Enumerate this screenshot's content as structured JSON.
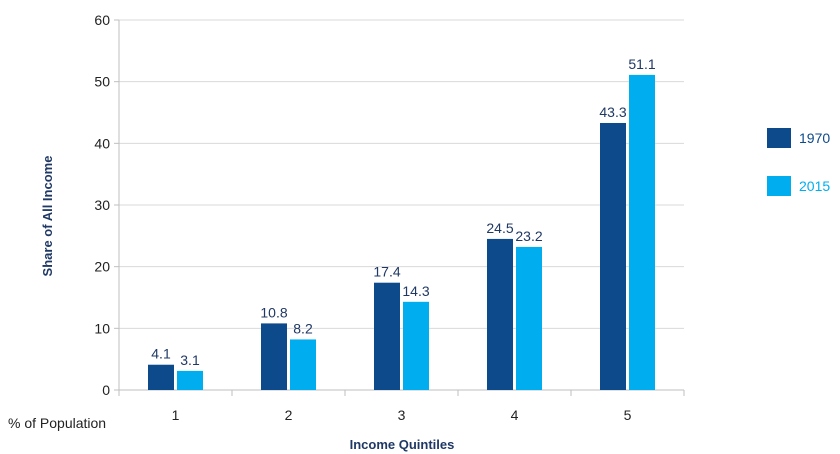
{
  "chart_data": {
    "type": "bar",
    "title": "",
    "xlabel": "Income Quintiles",
    "ylabel": "Share of All Income",
    "x_side_label": "% of Population",
    "categories": [
      "1",
      "2",
      "3",
      "4",
      "5"
    ],
    "series": [
      {
        "name": "1970",
        "values": [
          4.1,
          10.8,
          17.4,
          24.5,
          43.3
        ],
        "color": "#0d4a8b"
      },
      {
        "name": "2015",
        "values": [
          3.1,
          8.2,
          14.3,
          23.2,
          51.1
        ],
        "color": "#00aeef"
      }
    ],
    "ylim": [
      0,
      60
    ],
    "yticks": [
      0,
      10,
      20,
      30,
      40,
      50,
      60
    ],
    "grid": true,
    "legend_position": "right",
    "data_labels": true
  }
}
